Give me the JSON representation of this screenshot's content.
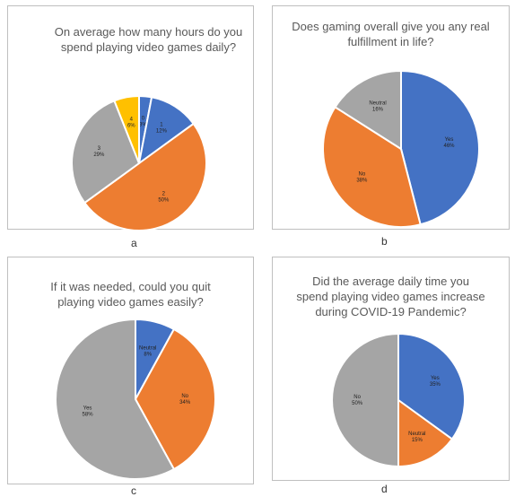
{
  "chart_data": [
    {
      "type": "pie",
      "panel_caption": "a",
      "title": "On average how many hours do you\nspend playing video games daily?",
      "slices": [
        {
          "name": "0",
          "value": 3,
          "label": "0\n3%",
          "color": "#4472c4"
        },
        {
          "name": "1",
          "value": 12,
          "label": "1\n12%",
          "color": "#4472c4"
        },
        {
          "name": "2",
          "value": 50,
          "label": "2\n50%",
          "color": "#ed7d31"
        },
        {
          "name": "3",
          "value": 29,
          "label": "3\n29%",
          "color": "#a5a5a5"
        },
        {
          "name": "4",
          "value": 6,
          "label": "4\n6%",
          "color": "#ffc000"
        }
      ]
    },
    {
      "type": "pie",
      "panel_caption": "b",
      "title": "Does gaming overall give you any real\nfulfillment in life?",
      "slices": [
        {
          "name": "Yes",
          "value": 46,
          "label": "Yes\n46%",
          "color": "#4472c4"
        },
        {
          "name": "No",
          "value": 38,
          "label": "No\n38%",
          "color": "#ed7d31"
        },
        {
          "name": "Neutral",
          "value": 16,
          "label": "Neutral\n16%",
          "color": "#a5a5a5"
        }
      ]
    },
    {
      "type": "pie",
      "panel_caption": "c",
      "title": "If it was needed, could you quit\nplaying video games easily?",
      "slices": [
        {
          "name": "Neutral",
          "value": 8,
          "label": "Neutral\n8%",
          "color": "#4472c4"
        },
        {
          "name": "No",
          "value": 34,
          "label": "No\n34%",
          "color": "#ed7d31"
        },
        {
          "name": "Yes",
          "value": 58,
          "label": "Yes\n58%",
          "color": "#a5a5a5"
        }
      ]
    },
    {
      "type": "pie",
      "panel_caption": "d",
      "title": "Did the average daily time you\nspend playing video games increase\nduring COVID-19 Pandemic?",
      "slices": [
        {
          "name": "Yes",
          "value": 35,
          "label": "Yes\n35%",
          "color": "#4472c4"
        },
        {
          "name": "Neutral",
          "value": 15,
          "label": "Neutral\n15%",
          "color": "#ed7d31"
        },
        {
          "name": "No",
          "value": 50,
          "label": "No\n50%",
          "color": "#a5a5a5"
        }
      ]
    }
  ]
}
